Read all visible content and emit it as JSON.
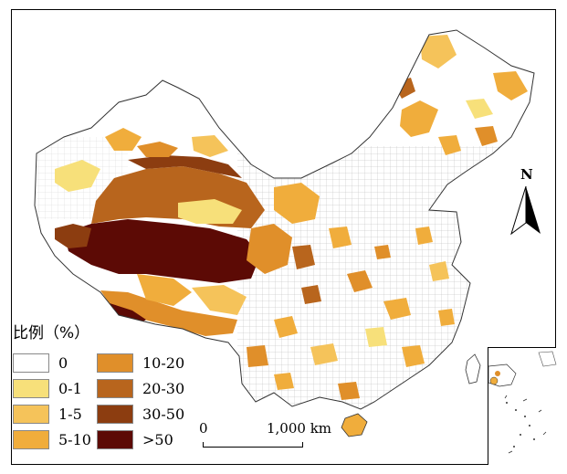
{
  "legend": {
    "title": "比例（%）",
    "items": [
      {
        "label": "0",
        "color": "#ffffff"
      },
      {
        "label": "0-1",
        "color": "#f7e07a"
      },
      {
        "label": "1-5",
        "color": "#f5c35a"
      },
      {
        "label": "5-10",
        "color": "#f0ad3c"
      },
      {
        "label": "10-20",
        "color": "#e08f2a"
      },
      {
        "label": "20-30",
        "color": "#b8651d"
      },
      {
        "label": "30-50",
        "color": "#8c3d10"
      },
      {
        "label": ">50",
        "color": "#5c0a05"
      }
    ]
  },
  "scale_bar": {
    "zero": "0",
    "distance": "1,000 km"
  },
  "north_arrow": {
    "label": "N"
  }
}
